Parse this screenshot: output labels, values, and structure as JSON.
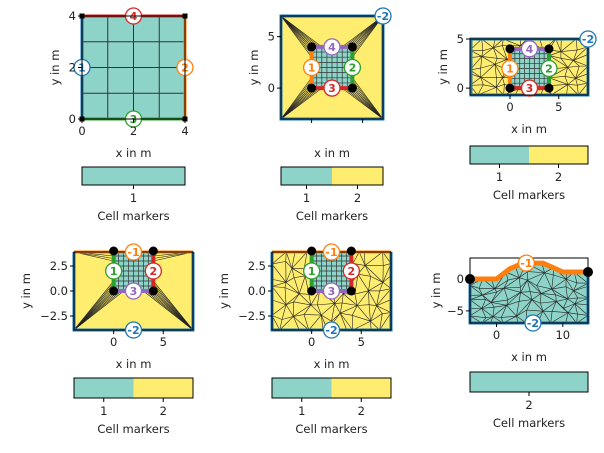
{
  "figure": {
    "colors": {
      "teal": "#8dd3c7",
      "yellow": "#ffed6f",
      "blue": "#1f77b4",
      "orange": "#ff7f0e",
      "green": "#2ca02c",
      "red": "#d62728",
      "purple": "#9467bd"
    },
    "xlabel": "x in m",
    "ylabel": "y in m",
    "colorbar_label": "Cell markers",
    "panels": [
      {
        "id": "p1",
        "xlim": [
          0,
          4
        ],
        "ylim": [
          0,
          4
        ],
        "xticks": [
          "0",
          "2",
          "4"
        ],
        "yticks": [
          "0",
          "2",
          "4"
        ],
        "show_ylabel": true,
        "world": null,
        "inner": {
          "x": [
            0,
            4
          ],
          "y": [
            0,
            4
          ],
          "edges": [
            {
              "side": "left",
              "color": "#1f77b4",
              "label": "1"
            },
            {
              "side": "right",
              "color": "#ff7f0e",
              "label": "2"
            },
            {
              "side": "bottom",
              "color": "#2ca02c",
              "label": "3"
            },
            {
              "side": "top",
              "color": "#d62728",
              "label": "4"
            }
          ]
        },
        "mesh": "grid",
        "colorbar": {
          "ticks": [
            "1"
          ],
          "colors": [
            "#8dd3c7"
          ]
        }
      },
      {
        "id": "p2",
        "xlim": [
          -3,
          7
        ],
        "ylim": [
          -3,
          7
        ],
        "xticks": [],
        "xtick_marks": [
          0,
          5
        ],
        "yticks": [
          "0",
          "5"
        ],
        "show_ylabel": true,
        "world": {
          "x": [
            -3,
            7
          ],
          "y": [
            -3,
            7
          ],
          "edges": [
            {
              "side": "all",
              "color": "#1f77b4",
              "label": "-2",
              "at": "top-right"
            }
          ]
        },
        "inner": {
          "x": [
            0,
            4
          ],
          "y": [
            0,
            4
          ],
          "edges": [
            {
              "side": "left",
              "color": "#ff7f0e",
              "label": "1"
            },
            {
              "side": "right",
              "color": "#2ca02c",
              "label": "2"
            },
            {
              "side": "bottom",
              "color": "#d62728",
              "label": "3"
            },
            {
              "side": "top",
              "color": "#9467bd",
              "label": "4"
            }
          ]
        },
        "mesh": "fan",
        "colorbar": {
          "ticks": [
            "1",
            "2"
          ],
          "colors": [
            "#8dd3c7",
            "#ffed6f"
          ]
        }
      },
      {
        "id": "p3",
        "xlim": [
          -4.1,
          8
        ],
        "ylim": [
          -0.7,
          5
        ],
        "xticks": [
          "0",
          "5"
        ],
        "yticks": [
          "0",
          "5"
        ],
        "show_ylabel": true,
        "world": {
          "x": [
            -4,
            8
          ],
          "y": [
            -0.7,
            5
          ],
          "edges": [
            {
              "side": "all",
              "color": "#1f77b4",
              "label": "-2",
              "at": "top-right"
            }
          ]
        },
        "inner": {
          "x": [
            0,
            4
          ],
          "y": [
            0,
            4
          ],
          "edges": [
            {
              "side": "left",
              "color": "#ff7f0e",
              "label": "1"
            },
            {
              "side": "right",
              "color": "#2ca02c",
              "label": "2"
            },
            {
              "side": "bottom",
              "color": "#d62728",
              "label": "3"
            },
            {
              "side": "top",
              "color": "#9467bd",
              "label": "4"
            }
          ]
        },
        "mesh": "tri",
        "colorbar": {
          "ticks": [
            "1",
            "2"
          ],
          "colors": [
            "#8dd3c7",
            "#ffed6f"
          ]
        }
      },
      {
        "id": "p4",
        "xlim": [
          -4,
          8
        ],
        "ylim": [
          -3.9,
          3.9
        ],
        "xticks": [
          "0",
          "5"
        ],
        "yticks": [
          "2.5",
          "0.0",
          "−2.5"
        ],
        "show_ylabel": true,
        "world": {
          "x": [
            -4,
            8
          ],
          "y": [
            -3.9,
            3.9
          ],
          "edges": [
            {
              "side": "top",
              "color": "#ff7f0e",
              "label": "-1",
              "at": "top"
            },
            {
              "side": "sides-bottom",
              "color": "#1f77b4",
              "label": "-2",
              "at": "bottom"
            }
          ]
        },
        "inner": {
          "x": [
            0,
            4
          ],
          "y": [
            0,
            4
          ],
          "edges": [
            {
              "side": "left",
              "color": "#2ca02c",
              "label": "1"
            },
            {
              "side": "right",
              "color": "#d62728",
              "label": "2"
            },
            {
              "side": "bottom",
              "color": "#9467bd",
              "label": "3"
            }
          ]
        },
        "mesh": "fan",
        "colorbar": {
          "ticks": [
            "1",
            "2"
          ],
          "colors": [
            "#8dd3c7",
            "#ffed6f"
          ]
        }
      },
      {
        "id": "p5",
        "xlim": [
          -4,
          8
        ],
        "ylim": [
          -3.9,
          3.9
        ],
        "xticks": [
          "0",
          "5"
        ],
        "yticks": [
          "2.5",
          "0.0",
          "−2.5"
        ],
        "show_ylabel": true,
        "world": {
          "x": [
            -4,
            8
          ],
          "y": [
            -3.9,
            3.9
          ],
          "edges": [
            {
              "side": "top",
              "color": "#ff7f0e",
              "label": "-1",
              "at": "top"
            },
            {
              "side": "sides-bottom",
              "color": "#1f77b4",
              "label": "-2",
              "at": "bottom"
            }
          ]
        },
        "inner": {
          "x": [
            0,
            4
          ],
          "y": [
            0,
            4
          ],
          "edges": [
            {
              "side": "left",
              "color": "#2ca02c",
              "label": "1"
            },
            {
              "side": "right",
              "color": "#d62728",
              "label": "2"
            },
            {
              "side": "bottom",
              "color": "#9467bd",
              "label": "3"
            }
          ]
        },
        "mesh": "tri",
        "colorbar": {
          "ticks": [
            "1",
            "2"
          ],
          "colors": [
            "#8dd3c7",
            "#ffed6f"
          ]
        }
      },
      {
        "id": "p6",
        "xlim": [
          -4,
          13.8
        ],
        "ylim": [
          -6.9,
          3.3
        ],
        "xticks": [
          "0",
          "10"
        ],
        "yticks": [
          "0",
          "−5"
        ],
        "show_ylabel": true,
        "terrain": {
          "x": [
            -4,
            0,
            2,
            4,
            7,
            10,
            13.8
          ],
          "y": [
            0,
            0,
            1.6,
            2.5,
            2.5,
            1.1,
            1.1
          ],
          "top_color": "#ff7f0e",
          "top_label": "-1",
          "bottom": -6.9,
          "bottom_color": "#1f77b4",
          "bottom_label": "-2"
        },
        "mesh": "terrain",
        "colorbar": {
          "ticks": [
            "2"
          ],
          "colors": [
            "#8dd3c7"
          ]
        }
      }
    ]
  }
}
